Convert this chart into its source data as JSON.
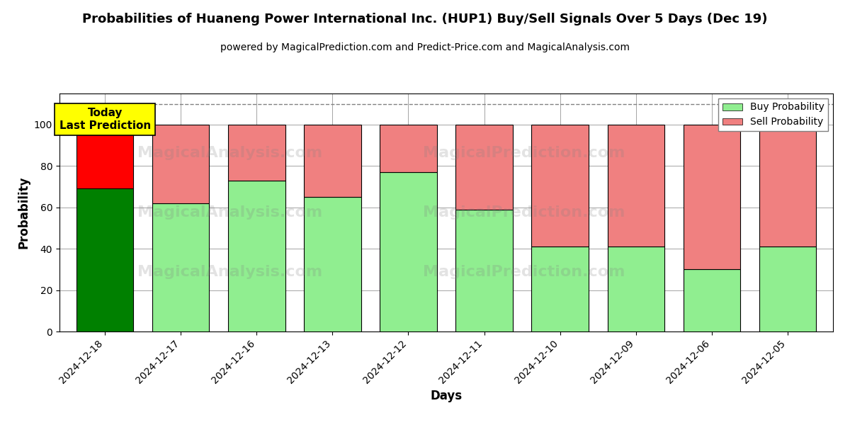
{
  "title": "Probabilities of Huaneng Power International Inc. (HUP1) Buy/Sell Signals Over 5 Days (Dec 19)",
  "subtitle": "powered by MagicalPrediction.com and Predict-Price.com and MagicalAnalysis.com",
  "xlabel": "Days",
  "ylabel": "Probability",
  "categories": [
    "2024-12-18",
    "2024-12-17",
    "2024-12-16",
    "2024-12-13",
    "2024-12-12",
    "2024-12-11",
    "2024-12-10",
    "2024-12-09",
    "2024-12-06",
    "2024-12-05"
  ],
  "buy_values": [
    69,
    62,
    73,
    65,
    77,
    59,
    41,
    41,
    30,
    41
  ],
  "sell_values": [
    31,
    38,
    27,
    35,
    23,
    41,
    59,
    59,
    70,
    59
  ],
  "today_buy_color": "#008000",
  "today_sell_color": "#ff0000",
  "buy_color": "#90EE90",
  "sell_color": "#F08080",
  "today_label_bg": "#ffff00",
  "dashed_line_y": 110,
  "ylim": [
    0,
    115
  ],
  "yticks": [
    0,
    20,
    40,
    60,
    80,
    100
  ],
  "legend_buy_label": "Buy Probability",
  "legend_sell_label": "Sell Probability",
  "bar_width": 0.75,
  "bar_edge_color": "#000000",
  "bar_edge_width": 0.8
}
